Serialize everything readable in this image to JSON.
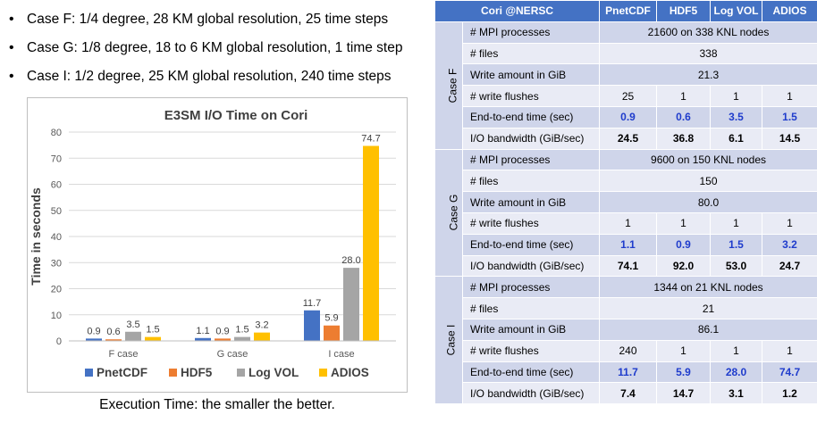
{
  "bullets": [
    "Case F: 1/4 degree, 28 KM global resolution, 25 time steps",
    "Case G:  1/8 degree, 18 to 6 KM global resolution, 1 time step",
    "Case I: 1/2 degree, 25 KM global resolution, 240 time steps"
  ],
  "caption": "Execution Time: the smaller the better.",
  "chart_data": {
    "type": "bar",
    "title": "E3SM I/O  Time on Cori",
    "ylabel": "Time in seconds",
    "xlabel": "",
    "categories": [
      "F case",
      "G case",
      "I case"
    ],
    "ylim": [
      0,
      80
    ],
    "yticks": [
      "0",
      "10",
      "20",
      "30",
      "40",
      "50",
      "60",
      "70",
      "80"
    ],
    "grid": true,
    "legend": "bottom",
    "series": [
      {
        "name": "PnetCDF",
        "color": "#4472c4",
        "values": [
          0.9,
          1.1,
          11.7
        ],
        "labels": [
          "0.9",
          "1.1",
          "11.7"
        ]
      },
      {
        "name": "HDF5",
        "color": "#ed7d31",
        "values": [
          0.6,
          0.9,
          5.9
        ],
        "labels": [
          "0.6",
          "0.9",
          "5.9"
        ]
      },
      {
        "name": "Log VOL",
        "color": "#a5a5a5",
        "values": [
          3.5,
          1.5,
          28.0
        ],
        "labels": [
          "3.5",
          "1.5",
          "28.0"
        ]
      },
      {
        "name": "ADIOS",
        "color": "#ffc000",
        "values": [
          1.5,
          3.2,
          74.7
        ],
        "labels": [
          "1.5",
          "3.2",
          "74.7"
        ]
      }
    ]
  },
  "table": {
    "headers": [
      "Cori @NERSC",
      "PnetCDF",
      "HDF5",
      "Log VOL",
      "ADIOS"
    ],
    "cases": [
      {
        "label": "Case F",
        "mpi": "21600 on 338 KNL nodes",
        "files": "338",
        "write_amount": "21.3",
        "flushes": [
          "25",
          "1",
          "1",
          "1"
        ],
        "times": [
          "0.9",
          "0.6",
          "3.5",
          "1.5"
        ],
        "bandwidth": [
          "24.5",
          "36.8",
          "6.1",
          "14.5"
        ]
      },
      {
        "label": "Case G",
        "mpi": "9600 on 150 KNL nodes",
        "files": "150",
        "write_amount": "80.0",
        "flushes": [
          "1",
          "1",
          "1",
          "1"
        ],
        "times": [
          "1.1",
          "0.9",
          "1.5",
          "3.2"
        ],
        "bandwidth": [
          "74.1",
          "92.0",
          "53.0",
          "24.7"
        ]
      },
      {
        "label": "Case I",
        "mpi": "1344 on 21 KNL nodes",
        "files": "21",
        "write_amount": "86.1",
        "flushes": [
          "240",
          "1",
          "1",
          "1"
        ],
        "times": [
          "11.7",
          "5.9",
          "28.0",
          "74.7"
        ],
        "bandwidth": [
          "7.4",
          "14.7",
          "3.1",
          "1.2"
        ]
      }
    ],
    "metrics": {
      "mpi": "# MPI processes",
      "files": "# files",
      "write_amount": "Write amount in GiB",
      "flushes": "# write flushes",
      "time": "End-to-end time (sec)",
      "bandwidth": "I/O bandwidth (GiB/sec)"
    }
  }
}
